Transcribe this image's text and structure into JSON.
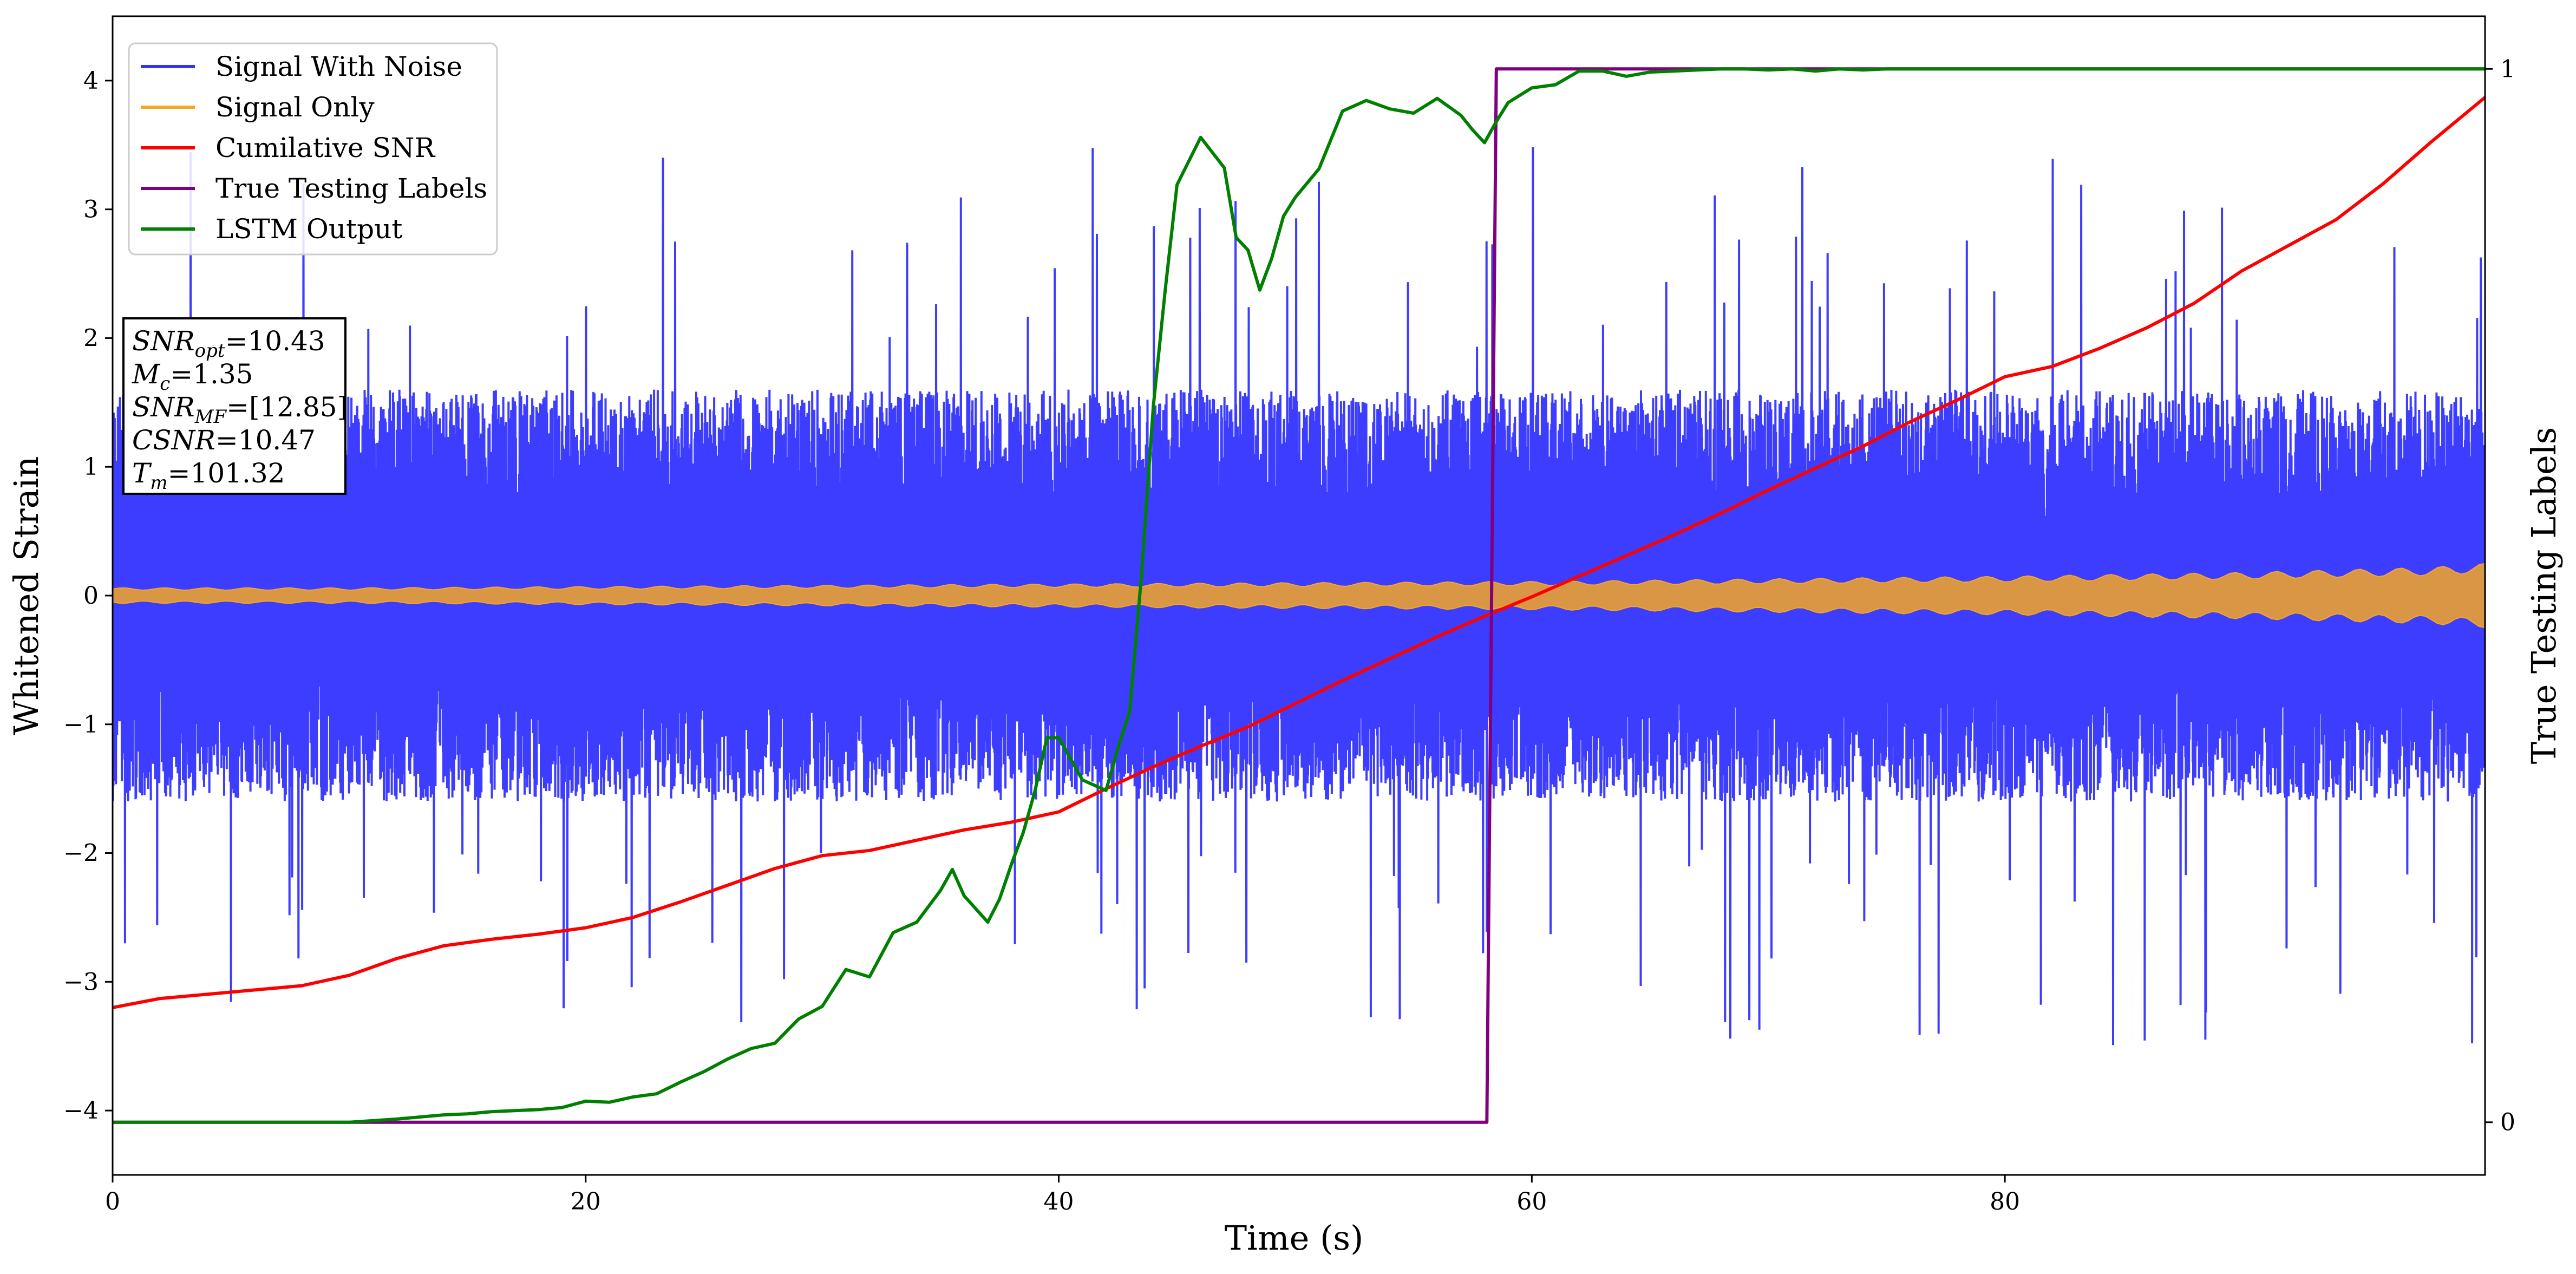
{
  "chart_data": {
    "type": "line",
    "xlabel": "Time (s)",
    "ylabel": "Whitened Strain",
    "ylabel_right": "True Testing Labels",
    "xlim": [
      0,
      100.3
    ],
    "ylim": [
      -4.5,
      4.5
    ],
    "ylim_right": [
      -0.05,
      1.05
    ],
    "x_ticks": [
      0,
      20,
      40,
      60,
      80
    ],
    "x_tick_labels": [
      "0",
      "20",
      "40",
      "60",
      "80"
    ],
    "y_ticks": [
      -4,
      -3,
      -2,
      -1,
      0,
      1,
      2,
      3,
      4
    ],
    "y_tick_labels": [
      "−4",
      "−3",
      "−2",
      "−1",
      "0",
      "1",
      "2",
      "3",
      "4"
    ],
    "y_right_ticks": [
      0,
      1
    ],
    "y_right_tick_labels": [
      "0",
      "1"
    ],
    "grid": false,
    "legend_position": "top-left",
    "legend": [
      {
        "label": "Signal With Noise",
        "color": "#3333ff"
      },
      {
        "label": "Signal Only",
        "color": "#f5a623"
      },
      {
        "label": "Cumilative SNR",
        "color": "#ff0000"
      },
      {
        "label": "True Testing Labels",
        "color": "#800080"
      },
      {
        "label": "LSTM Output",
        "color": "#008000"
      }
    ],
    "annotation": [
      {
        "base": "SNR",
        "sub": "opt",
        "value": "=10.43"
      },
      {
        "base": "M",
        "sub": "c",
        "value": "=1.35"
      },
      {
        "base": "SNR",
        "sub": "MF",
        "value": "=[12.85]"
      },
      {
        "base": "CSNR",
        "sub": "",
        "value": "=10.47"
      },
      {
        "base": "T",
        "sub": "m",
        "value": "=101.32"
      }
    ],
    "series": [
      {
        "name": "Signal With Noise",
        "axis": "left",
        "color": "#3333ff",
        "style": "dense noise",
        "x_range": [
          0,
          100.3
        ],
        "typical_range": [
          -1.6,
          1.6
        ],
        "peak_range": [
          -3.7,
          3.5
        ]
      },
      {
        "name": "Signal Only",
        "axis": "left",
        "color": "#f5a623",
        "style": "band",
        "x": [
          0,
          10,
          20,
          30,
          40,
          50,
          60,
          70,
          80,
          90,
          98,
          100.3
        ],
        "amplitude": [
          0.06,
          0.06,
          0.07,
          0.08,
          0.09,
          0.1,
          0.11,
          0.13,
          0.15,
          0.18,
          0.22,
          0.25
        ]
      },
      {
        "name": "Cumilative SNR",
        "axis": "left",
        "color": "#ff0000",
        "x": [
          0,
          2,
          5,
          8,
          10,
          12,
          14,
          16,
          18,
          20,
          22,
          24,
          26,
          28,
          30,
          32,
          34,
          36,
          38,
          40,
          42,
          44,
          46,
          48,
          50,
          52,
          54,
          56,
          58,
          60,
          62,
          64,
          66,
          68,
          70,
          72,
          74,
          76,
          78,
          80,
          82,
          84,
          86,
          88,
          90,
          92,
          94,
          96,
          98,
          100.3
        ],
        "y": [
          -3.2,
          -3.13,
          -3.08,
          -3.03,
          -2.95,
          -2.82,
          -2.72,
          -2.67,
          -2.63,
          -2.58,
          -2.5,
          -2.38,
          -2.25,
          -2.12,
          -2.02,
          -1.98,
          -1.9,
          -1.82,
          -1.76,
          -1.68,
          -1.5,
          -1.33,
          -1.17,
          -1.02,
          -0.84,
          -0.66,
          -0.49,
          -0.32,
          -0.16,
          -0.01,
          0.15,
          0.31,
          0.47,
          0.64,
          0.82,
          0.99,
          1.16,
          1.35,
          1.52,
          1.7,
          1.78,
          1.92,
          2.08,
          2.27,
          2.52,
          2.72,
          2.92,
          3.2,
          3.52,
          3.87
        ]
      },
      {
        "name": "True Testing Labels",
        "axis": "right",
        "color": "#800080",
        "x": [
          0,
          58.1,
          58.5,
          100.3
        ],
        "y": [
          0,
          0,
          1,
          1
        ]
      },
      {
        "name": "LSTM Output",
        "axis": "right",
        "color": "#008000",
        "x": [
          0,
          10,
          12,
          14,
          15,
          16,
          17,
          18,
          19,
          20,
          21,
          22,
          23,
          24,
          25,
          26,
          27,
          28,
          29,
          30,
          31,
          32,
          33,
          34,
          35,
          35.5,
          36,
          37,
          37.5,
          38,
          38.5,
          39,
          39.5,
          40,
          40.5,
          41,
          42,
          42.5,
          43,
          43.5,
          44,
          44.5,
          45,
          46,
          47,
          47.5,
          48,
          48.5,
          49,
          49.5,
          50,
          51,
          52,
          53,
          54,
          55,
          56,
          56.5,
          57,
          57.5,
          58,
          58.5,
          59,
          60,
          61,
          62,
          63,
          64,
          65,
          66,
          67,
          68,
          69,
          70,
          71,
          72,
          73,
          74,
          75,
          76,
          80,
          85,
          90,
          95,
          100.3
        ],
        "y": [
          0,
          0,
          0.003,
          0.007,
          0.008,
          0.01,
          0.011,
          0.012,
          0.014,
          0.02,
          0.019,
          0.024,
          0.027,
          0.038,
          0.048,
          0.06,
          0.07,
          0.075,
          0.098,
          0.11,
          0.145,
          0.138,
          0.18,
          0.19,
          0.22,
          0.24,
          0.215,
          0.19,
          0.212,
          0.245,
          0.275,
          0.315,
          0.365,
          0.365,
          0.345,
          0.325,
          0.315,
          0.355,
          0.39,
          0.52,
          0.68,
          0.79,
          0.89,
          0.935,
          0.906,
          0.84,
          0.828,
          0.79,
          0.82,
          0.86,
          0.878,
          0.905,
          0.96,
          0.97,
          0.962,
          0.958,
          0.972,
          0.964,
          0.956,
          0.942,
          0.93,
          0.95,
          0.968,
          0.982,
          0.985,
          0.998,
          0.998,
          0.993,
          0.997,
          0.998,
          0.999,
          1.0,
          1.0,
          0.999,
          1.0,
          0.998,
          1.0,
          0.999,
          1.0,
          1.0,
          1.0,
          1.0,
          1.0,
          1.0,
          1.0
        ]
      }
    ]
  }
}
